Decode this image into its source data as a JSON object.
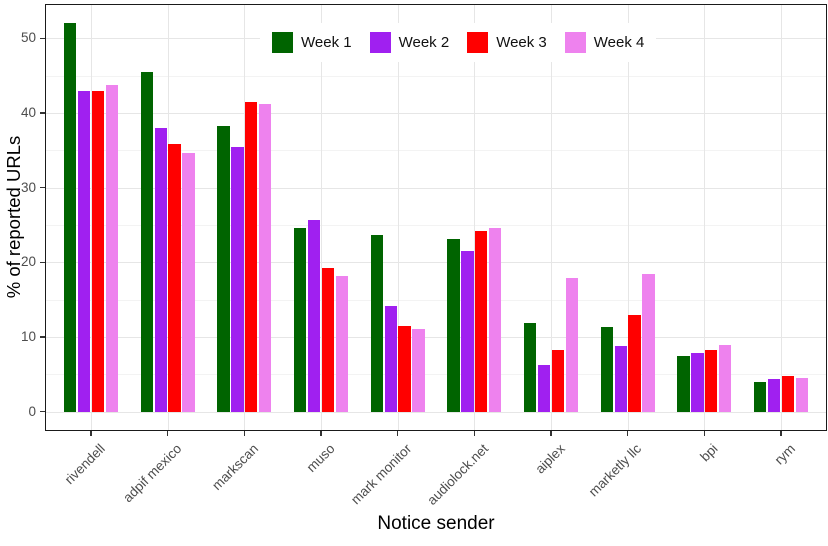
{
  "chart_data": {
    "type": "bar",
    "title": "",
    "xlabel": "Notice sender",
    "ylabel": "% of reported URLs",
    "categories": [
      "rivendell",
      "adpif mexico",
      "markscan",
      "muso",
      "mark monitor",
      "audiolock.net",
      "aiplex",
      "marketly llc",
      "bpi",
      "rym"
    ],
    "series": [
      {
        "name": "Week 1",
        "color": "#006400",
        "values": [
          52.0,
          45.5,
          38.3,
          24.6,
          23.7,
          23.1,
          11.9,
          11.3,
          7.4,
          4.0
        ]
      },
      {
        "name": "Week 2",
        "color": "#a020f0",
        "values": [
          43.0,
          38.0,
          35.4,
          25.7,
          14.1,
          21.5,
          6.2,
          8.8,
          7.9,
          4.4
        ]
      },
      {
        "name": "Week 3",
        "color": "#ff0000",
        "values": [
          42.9,
          35.9,
          41.5,
          19.3,
          11.4,
          24.2,
          8.2,
          12.9,
          8.2,
          4.8
        ]
      },
      {
        "name": "Week 4",
        "color": "#ee82ee",
        "values": [
          43.8,
          34.6,
          41.2,
          18.2,
          11.1,
          24.6,
          17.9,
          18.4,
          8.9,
          4.5
        ]
      }
    ],
    "y_ticks": [
      0,
      10,
      20,
      30,
      40,
      50
    ],
    "ylim": [
      -2.6,
      54.6
    ],
    "grid": true,
    "legend_position": "top-center-inside",
    "colors": {
      "grid_major": "#e6e6e6",
      "grid_minor": "#f3f3f3",
      "axis_text": "#4d4d4d",
      "panel_border": "#1a1a1a"
    }
  }
}
